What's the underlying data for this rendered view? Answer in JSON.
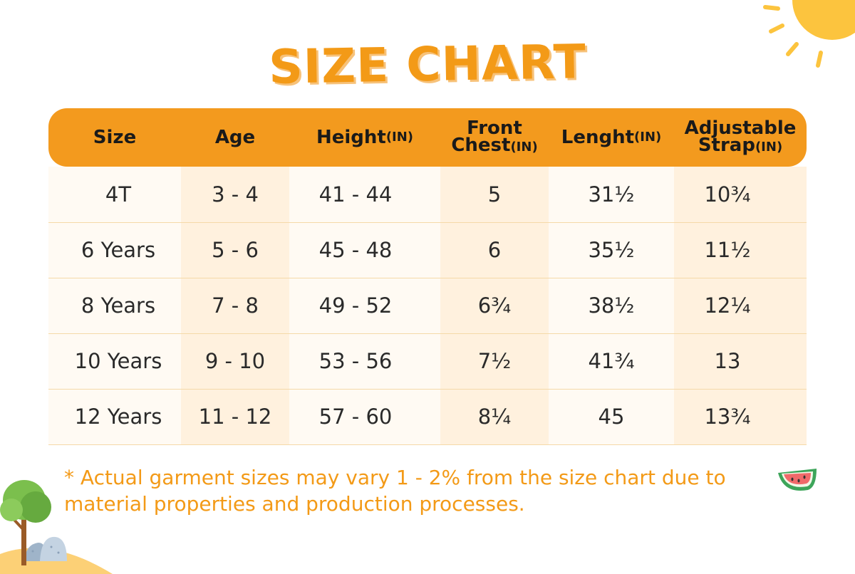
{
  "title": "SIZE CHART",
  "table": {
    "headers": [
      {
        "main": "Size",
        "unit": ""
      },
      {
        "main": "Age",
        "unit": ""
      },
      {
        "main": "Height",
        "unit": "(IN)"
      },
      {
        "line1": "Front",
        "main": "Chest",
        "unit": "(IN)"
      },
      {
        "main": "Lenght",
        "unit": "(IN)"
      },
      {
        "line1": "Adjustable",
        "main": "Strap",
        "unit": "(IN)"
      }
    ],
    "rows": [
      [
        "4T",
        "3 - 4",
        "41 - 44",
        "5",
        "31½",
        "10¾"
      ],
      [
        "6 Years",
        "5 - 6",
        "45 - 48",
        "6",
        "35½",
        "11½"
      ],
      [
        "8 Years",
        "7 - 8",
        "49 - 52",
        "6¾",
        "38½",
        "12¼"
      ],
      [
        "10 Years",
        "9 - 10",
        "53 - 56",
        "7½",
        "41¾",
        "13"
      ],
      [
        "12 Years",
        "11 - 12",
        "57 - 60",
        "8¼",
        "45",
        "13¾"
      ]
    ]
  },
  "note": "* Actual garment sizes may vary 1 - 2% from the size chart due to material properties and production processes.",
  "colors": {
    "accent": "#f39a1e",
    "col_light": "#fffaf3",
    "col_tint": "#fff1de"
  },
  "icons": [
    "sun-icon",
    "tree-icon",
    "rocks-icon",
    "hill-icon",
    "watermelon-icon"
  ]
}
